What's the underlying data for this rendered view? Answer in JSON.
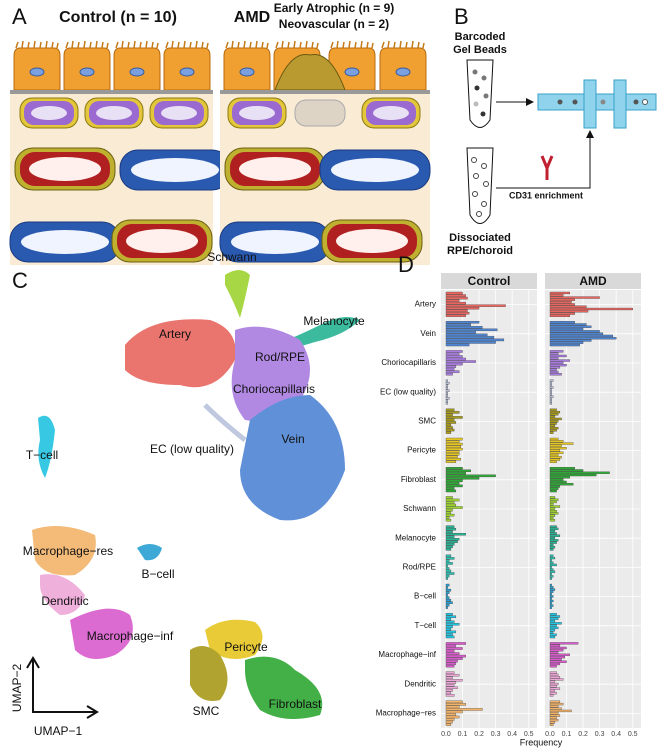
{
  "panel_a": {
    "label": "A",
    "control_title": "Control (n = 10)",
    "amd_title": "AMD",
    "amd_sub_1": "Early Atrophic (n = 9)",
    "amd_sub_2": "Neovascular (n = 2)"
  },
  "panel_b": {
    "label": "B",
    "beads_1": "Barcoded",
    "beads_2": "Gel Beads",
    "enrichment": "CD31 enrichment",
    "tissue_1": "Dissociated",
    "tissue_2": "RPE/choroid"
  },
  "panel_c": {
    "label": "C",
    "x_label": "UMAP−1",
    "y_label": "UMAP−2",
    "clusters": [
      "Schwann",
      "Melanocyte",
      "Rod/RPE",
      "T−cell",
      "Artery",
      "Choriocapillaris",
      "EC (low quality)",
      "Vein",
      "Macrophage−res",
      "B−cell",
      "Dendritic",
      "Macrophage−inf",
      "Pericyte",
      "SMC",
      "Fibroblast"
    ]
  },
  "chart_data": {
    "type": "bar",
    "orientation": "horizontal",
    "label": "D",
    "x_label": "Frequency",
    "xlim": [
      -0.03,
      0.55
    ],
    "xticks": [
      {
        "value": 0,
        "label": "0.0"
      },
      0.1,
      0.2,
      0.3,
      0.4,
      0.5
    ],
    "grid": true,
    "categories": [
      "Artery",
      "Vein",
      "Choriocapillaris",
      "EC (low quality)",
      "SMC",
      "Pericyte",
      "Fibroblast",
      "Schwann",
      "Melanocyte",
      "Rod/RPE",
      "B−cell",
      "T−cell",
      "Macrophage−inf",
      "Dendritic",
      "Macrophage−res"
    ],
    "colors": [
      "#e8665f",
      "#4f86d4",
      "#a97de0",
      "#b9c3dc",
      "#a89a1a",
      "#e6c622",
      "#2ea834",
      "#9ed330",
      "#27b394",
      "#2dbfb0",
      "#2aa0d2",
      "#22c4e0",
      "#d85ccc",
      "#eea8d8",
      "#f2b36a"
    ],
    "facets": [
      {
        "name": "Control",
        "values": [
          [
            0.1,
            0.12,
            0.13,
            0.08,
            0.12,
            0.36,
            0.2,
            0.13,
            0.14,
            0.12
          ],
          [
            0.2,
            0.15,
            0.22,
            0.31,
            0.18,
            0.25,
            0.29,
            0.35,
            0.3,
            0.14
          ],
          [
            0.1,
            0.08,
            0.1,
            0.12,
            0.18,
            0.1,
            0.06,
            0.05,
            0.08,
            0.04
          ],
          [
            0.01,
            0.02,
            0.01,
            0.01,
            0.02,
            0.01,
            0.01,
            0.02,
            0.01,
            0.01
          ],
          [
            0.05,
            0.08,
            0.04,
            0.1,
            0.05,
            0.06,
            0.03,
            0.04,
            0.05,
            0.03
          ],
          [
            0.1,
            0.08,
            0.1,
            0.09,
            0.1,
            0.08,
            0.08,
            0.07,
            0.09,
            0.06
          ],
          [
            0.1,
            0.15,
            0.12,
            0.3,
            0.2,
            0.1,
            0.08,
            0.1,
            0.05,
            0.06
          ],
          [
            0.04,
            0.08,
            0.05,
            0.06,
            0.1,
            0.04,
            0.03,
            0.05,
            0.02,
            0.03
          ],
          [
            0.05,
            0.06,
            0.04,
            0.12,
            0.05,
            0.08,
            0.07,
            0.05,
            0.04,
            0.03
          ],
          [
            0.03,
            0.05,
            0.02,
            0.04,
            0.01,
            0.02,
            0.03,
            0.05,
            0.02,
            0.01
          ],
          [
            0.02,
            0.01,
            0.03,
            0.02,
            0.01,
            0.02,
            0.03,
            0.04,
            0.02,
            0.01
          ],
          [
            0.04,
            0.06,
            0.03,
            0.05,
            0.08,
            0.04,
            0.03,
            0.06,
            0.04,
            0.05
          ],
          [
            0.12,
            0.06,
            0.1,
            0.05,
            0.08,
            0.12,
            0.1,
            0.07,
            0.06,
            0.05
          ],
          [
            0.05,
            0.08,
            0.04,
            0.1,
            0.06,
            0.05,
            0.07,
            0.04,
            0.03,
            0.05
          ],
          [
            0.1,
            0.12,
            0.08,
            0.22,
            0.1,
            0.06,
            0.08,
            0.05,
            0.04,
            0.03
          ]
        ]
      },
      {
        "name": "AMD",
        "values": [
          [
            0.12,
            0.08,
            0.3,
            0.15,
            0.13,
            0.15,
            0.22,
            0.5,
            0.23,
            0.15,
            0.12
          ],
          [
            0.15,
            0.22,
            0.25,
            0.2,
            0.3,
            0.32,
            0.38,
            0.4,
            0.25,
            0.2,
            0.18
          ],
          [
            0.08,
            0.05,
            0.1,
            0.05,
            0.12,
            0.08,
            0.1,
            0.06,
            0.04,
            0.05,
            0.07
          ],
          [
            0.02,
            0.01,
            0.01,
            0.02,
            0.01,
            0.01,
            0.01,
            0.02,
            0.01,
            0.01,
            0.01
          ],
          [
            0.04,
            0.06,
            0.05,
            0.03,
            0.07,
            0.05,
            0.04,
            0.03,
            0.05,
            0.04,
            0.02
          ],
          [
            0.05,
            0.08,
            0.14,
            0.07,
            0.1,
            0.06,
            0.08,
            0.05,
            0.07,
            0.06,
            0.04
          ],
          [
            0.15,
            0.2,
            0.36,
            0.28,
            0.12,
            0.08,
            0.1,
            0.14,
            0.06,
            0.05,
            0.04
          ],
          [
            0.03,
            0.05,
            0.04,
            0.02,
            0.06,
            0.03,
            0.04,
            0.05,
            0.03,
            0.02,
            0.03
          ],
          [
            0.04,
            0.05,
            0.03,
            0.04,
            0.06,
            0.03,
            0.05,
            0.04,
            0.02,
            0.03,
            0.02
          ],
          [
            0.02,
            0.03,
            0.01,
            0.02,
            0.04,
            0.01,
            0.02,
            0.03,
            0.01,
            0.02,
            0.01
          ],
          [
            0.01,
            0.02,
            0.03,
            0.02,
            0.01,
            0.02,
            0.01,
            0.02,
            0.01,
            0.02,
            0.01
          ],
          [
            0.04,
            0.06,
            0.05,
            0.03,
            0.07,
            0.04,
            0.05,
            0.03,
            0.02,
            0.04,
            0.03
          ],
          [
            0.17,
            0.06,
            0.1,
            0.08,
            0.05,
            0.12,
            0.09,
            0.07,
            0.1,
            0.06,
            0.04
          ],
          [
            0.04,
            0.05,
            0.06,
            0.08,
            0.03,
            0.05,
            0.04,
            0.06,
            0.03,
            0.04,
            0.02
          ],
          [
            0.06,
            0.08,
            0.05,
            0.07,
            0.13,
            0.05,
            0.06,
            0.04,
            0.05,
            0.03,
            0.02
          ]
        ]
      }
    ]
  }
}
